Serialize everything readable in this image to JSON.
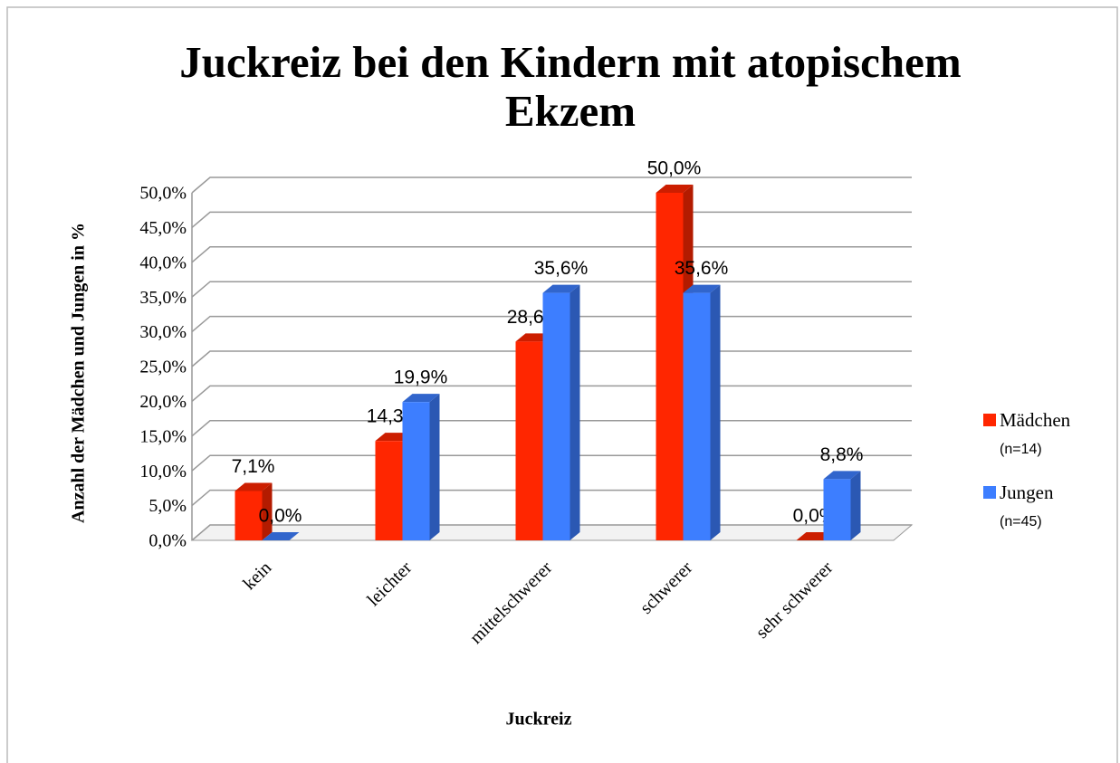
{
  "chart_data": {
    "type": "bar3d",
    "title": "Juckreiz bei den Kindern mit atopischem Ekzem",
    "x_label": "Juckreiz",
    "y_label": "Anzahl der Mädchen und Jungen in %",
    "categories": [
      "kein",
      "leichter",
      "mittelschwerer",
      "schwerer",
      "sehr schwerer"
    ],
    "series": [
      {
        "name": "Mädchen",
        "note": "(n=14)",
        "color": "#ff2600",
        "values": [
          7.1,
          14.3,
          28.6,
          50.0,
          0.0
        ],
        "value_labels": [
          "7,1%",
          "14,3%",
          "28,6%",
          "50,0%",
          "0,0%"
        ]
      },
      {
        "name": "Jungen",
        "note": "(n=45)",
        "color": "#3d7eff",
        "values": [
          0.0,
          19.9,
          35.6,
          35.6,
          8.8
        ],
        "value_labels": [
          "0,0%",
          "19,9%",
          "35,6%",
          "35,6%",
          "8,8%"
        ]
      }
    ],
    "ylim": [
      0,
      50
    ],
    "yticks": [
      {
        "value": 0,
        "label": "0,0%"
      },
      {
        "value": 5,
        "label": "5,0%"
      },
      {
        "value": 10,
        "label": "10,0%"
      },
      {
        "value": 15,
        "label": "15,0%"
      },
      {
        "value": 20,
        "label": "20,0%"
      },
      {
        "value": 25,
        "label": "25,0%"
      },
      {
        "value": 30,
        "label": "30,0%"
      },
      {
        "value": 35,
        "label": "35,0%"
      },
      {
        "value": 40,
        "label": "40,0%"
      },
      {
        "value": 45,
        "label": "45,0%"
      },
      {
        "value": 50,
        "label": "50,0%"
      }
    ],
    "grid": true,
    "legend": "right"
  }
}
